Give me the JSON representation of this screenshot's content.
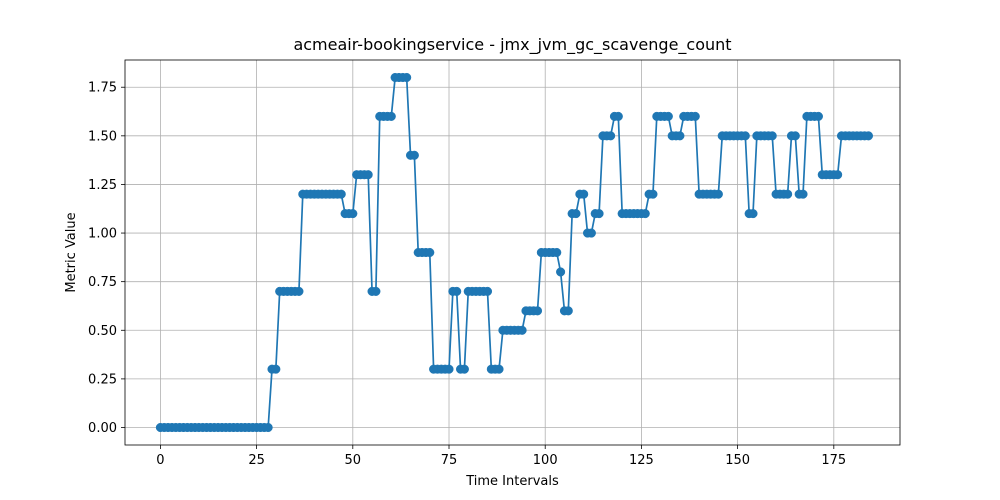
{
  "chart_data": {
    "type": "line",
    "title": "acmeair-bookingservice - jmx_jvm_gc_scavenge_count",
    "xlabel": "Time Intervals",
    "ylabel": "Metric Value",
    "xlim": [
      -9.2,
      192.2
    ],
    "ylim": [
      -0.09,
      1.89
    ],
    "xticks": [
      0,
      25,
      50,
      75,
      100,
      125,
      150,
      175
    ],
    "xtick_labels": [
      "0",
      "25",
      "50",
      "75",
      "100",
      "125",
      "150",
      "175"
    ],
    "yticks": [
      0.0,
      0.25,
      0.5,
      0.75,
      1.0,
      1.25,
      1.5,
      1.75
    ],
    "ytick_labels": [
      "0.00",
      "0.25",
      "0.50",
      "0.75",
      "1.00",
      "1.25",
      "1.50",
      "1.75"
    ],
    "grid": true,
    "series": [
      {
        "color": "#1f77b4",
        "marker": "circle",
        "values": [
          0,
          0,
          0,
          0,
          0,
          0,
          0,
          0,
          0,
          0,
          0,
          0,
          0,
          0,
          0,
          0,
          0,
          0,
          0,
          0,
          0,
          0,
          0,
          0,
          0,
          0,
          0,
          0,
          0,
          0.3,
          0.3,
          0.7,
          0.7,
          0.7,
          0.7,
          0.7,
          0.7,
          1.2,
          1.2,
          1.2,
          1.2,
          1.2,
          1.2,
          1.2,
          1.2,
          1.2,
          1.2,
          1.2,
          1.1,
          1.1,
          1.1,
          1.3,
          1.3,
          1.3,
          1.3,
          0.7,
          0.7,
          1.6,
          1.6,
          1.6,
          1.6,
          1.8,
          1.8,
          1.8,
          1.8,
          1.4,
          1.4,
          0.9,
          0.9,
          0.9,
          0.9,
          0.3,
          0.3,
          0.3,
          0.3,
          0.3,
          0.7,
          0.7,
          0.3,
          0.3,
          0.7,
          0.7,
          0.7,
          0.7,
          0.7,
          0.7,
          0.3,
          0.3,
          0.3,
          0.5,
          0.5,
          0.5,
          0.5,
          0.5,
          0.5,
          0.6,
          0.6,
          0.6,
          0.6,
          0.9,
          0.9,
          0.9,
          0.9,
          0.9,
          0.8,
          0.6,
          0.6,
          1.1,
          1.1,
          1.2,
          1.2,
          1.0,
          1.0,
          1.1,
          1.1,
          1.5,
          1.5,
          1.5,
          1.6,
          1.6,
          1.1,
          1.1,
          1.1,
          1.1,
          1.1,
          1.1,
          1.1,
          1.2,
          1.2,
          1.6,
          1.6,
          1.6,
          1.6,
          1.5,
          1.5,
          1.5,
          1.6,
          1.6,
          1.6,
          1.6,
          1.2,
          1.2,
          1.2,
          1.2,
          1.2,
          1.2,
          1.5,
          1.5,
          1.5,
          1.5,
          1.5,
          1.5,
          1.5,
          1.1,
          1.1,
          1.5,
          1.5,
          1.5,
          1.5,
          1.5,
          1.2,
          1.2,
          1.2,
          1.2,
          1.5,
          1.5,
          1.2,
          1.2,
          1.6,
          1.6,
          1.6,
          1.6,
          1.3,
          1.3,
          1.3,
          1.3,
          1.3,
          1.5,
          1.5,
          1.5,
          1.5,
          1.5,
          1.5,
          1.5,
          1.5
        ]
      }
    ]
  }
}
